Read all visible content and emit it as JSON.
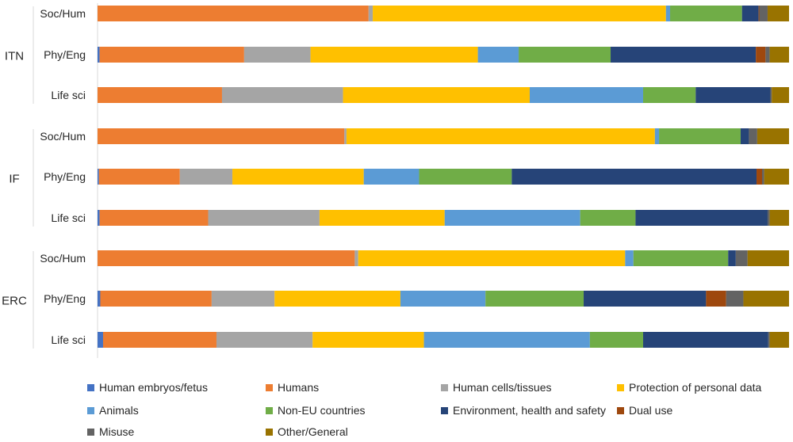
{
  "chart_data": {
    "type": "bar",
    "orientation": "horizontal",
    "stacked": true,
    "percent_stacked": true,
    "grid": false,
    "legend_position": "bottom",
    "groups": [
      {
        "name": "ITN",
        "categories": [
          "Soc/Hum",
          "Phy/Eng",
          "Life sci"
        ]
      },
      {
        "name": "IF",
        "categories": [
          "Soc/Hum",
          "Phy/Eng",
          "Life sci"
        ]
      },
      {
        "name": "ERC",
        "categories": [
          "Soc/Hum",
          "Phy/Eng",
          "Life sci"
        ]
      }
    ],
    "series": [
      {
        "name": "Human embryos/fetus",
        "color": "#4472c4",
        "values": [
          0,
          0.3,
          0,
          0,
          0.2,
          0.3,
          0,
          0.4,
          0.8
        ]
      },
      {
        "name": "Humans",
        "color": "#ed7d31",
        "values": [
          39.2,
          20.9,
          18.0,
          35.7,
          11.7,
          15.7,
          37.2,
          16.1,
          16.4
        ]
      },
      {
        "name": "Human cells/tissues",
        "color": "#a5a5a5",
        "values": [
          0.6,
          9.6,
          17.5,
          0.3,
          7.6,
          16.1,
          0.5,
          9.1,
          13.9
        ]
      },
      {
        "name": "Protection of personal data",
        "color": "#ffc000",
        "values": [
          42.4,
          24.2,
          27.0,
          44.6,
          19.0,
          18.1,
          38.6,
          18.2,
          16.1
        ]
      },
      {
        "name": "Animals",
        "color": "#5b9bd5",
        "values": [
          0.6,
          5.9,
          16.4,
          0.6,
          8.0,
          19.6,
          1.2,
          12.3,
          24.0
        ]
      },
      {
        "name": "Non-EU countries",
        "color": "#70ad47",
        "values": [
          10.4,
          13.3,
          7.6,
          11.8,
          13.4,
          8.0,
          13.7,
          14.2,
          7.7
        ]
      },
      {
        "name": "Environment, health and safety",
        "color": "#264478",
        "values": [
          2.4,
          21.0,
          10.8,
          1.2,
          35.4,
          19.1,
          1.1,
          17.7,
          18.1
        ]
      },
      {
        "name": "Dual use",
        "color": "#9e480e",
        "values": [
          0.1,
          1.4,
          0,
          0,
          0.8,
          0,
          0,
          2.9,
          0
        ]
      },
      {
        "name": "Misuse",
        "color": "#636363",
        "values": [
          1.2,
          0.6,
          0.2,
          1.2,
          0.3,
          0.3,
          1.7,
          2.5,
          0.2
        ]
      },
      {
        "name": "Other/General",
        "color": "#997300",
        "values": [
          3.1,
          2.8,
          2.5,
          4.6,
          3.6,
          2.8,
          6.0,
          6.6,
          2.8
        ]
      }
    ]
  }
}
